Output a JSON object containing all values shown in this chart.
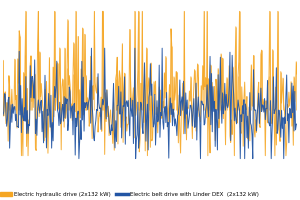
{
  "legend_labels": [
    "Electric hydraulic drive (2x132 kW)",
    "Electric belt drive with Linder DEX  (2x132 kW)"
  ],
  "orange_color": "#F5A623",
  "blue_color": "#2255A4",
  "background_color": "#ffffff",
  "n_points": 400,
  "seed": 7,
  "orange_mean": 0.38,
  "orange_std": 0.18,
  "orange_spike_prob": 0.18,
  "orange_spike_scale": 0.38,
  "blue_mean": 0.32,
  "blue_std": 0.1,
  "blue_spike_prob": 0.15,
  "blue_spike_scale": 0.18,
  "ylim": [
    -0.05,
    1.05
  ]
}
